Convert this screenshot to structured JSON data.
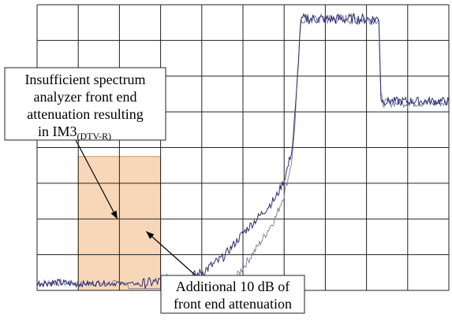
{
  "chart_data": {
    "type": "line",
    "title": "",
    "xlabel": "",
    "ylabel": "",
    "grid": true,
    "grid_divisions": {
      "x": 10,
      "y": 8
    },
    "xlim": [
      0,
      10
    ],
    "ylim": [
      0,
      8
    ],
    "colors": {
      "trace": "#2c2c72",
      "trace_light": "#7a7a9a",
      "highlight_fill": "#f8d7b8",
      "highlight_stroke": "#c98c5a"
    },
    "highlight_region": {
      "x": [
        1,
        3
      ],
      "y": [
        0,
        3.75
      ]
    },
    "series": [
      {
        "key": "trace_main",
        "points": [
          [
            0,
            0.2
          ],
          [
            0.5,
            0.22
          ],
          [
            1,
            0.18
          ],
          [
            1.5,
            0.2
          ],
          [
            2,
            0.2
          ],
          [
            2.5,
            0.18
          ],
          [
            3,
            0.25
          ],
          [
            3.2,
            0.3
          ],
          [
            3.5,
            0.3
          ],
          [
            3.8,
            0.4
          ],
          [
            4,
            0.5
          ],
          [
            4.5,
            0.9
          ],
          [
            5,
            1.6
          ],
          [
            5.5,
            2.2
          ],
          [
            5.8,
            2.6
          ],
          [
            6,
            3.1
          ],
          [
            6.1,
            3.5
          ],
          [
            6.2,
            4.0
          ],
          [
            6.3,
            5.5
          ],
          [
            6.35,
            6.5
          ],
          [
            6.4,
            7.5
          ],
          [
            6.45,
            7.6
          ],
          [
            7.5,
            7.6
          ],
          [
            8.3,
            7.6
          ],
          [
            8.35,
            5.4
          ],
          [
            8.4,
            5.3
          ],
          [
            9.3,
            5.3
          ],
          [
            10,
            5.3
          ]
        ],
        "noise": [
          0.1,
          0.1,
          0.08,
          0.08,
          0.05,
          0.15,
          0.15,
          0.15,
          0.15,
          0.15,
          0.15,
          0.12,
          0.12,
          0.12,
          0.12,
          0.12,
          0.12,
          0.12,
          0.12,
          0.12,
          0.12,
          0.15,
          0.15,
          0.15,
          0.15,
          0.12,
          0.12,
          0.12
        ]
      }
    ],
    "annotations": [
      {
        "key": "im3",
        "lines": [
          "Insufficient spectrum",
          "analyzer front end",
          "attenuation resulting"
        ],
        "last_line": "in IM3",
        "subscript": "(DTV-R)",
        "arrow_target": [
          1.95,
          2.0
        ]
      },
      {
        "key": "atten",
        "lines": [
          "Additional 10 dB of",
          "front end attenuation"
        ],
        "arrow_target": [
          2.65,
          1.65
        ]
      }
    ]
  }
}
